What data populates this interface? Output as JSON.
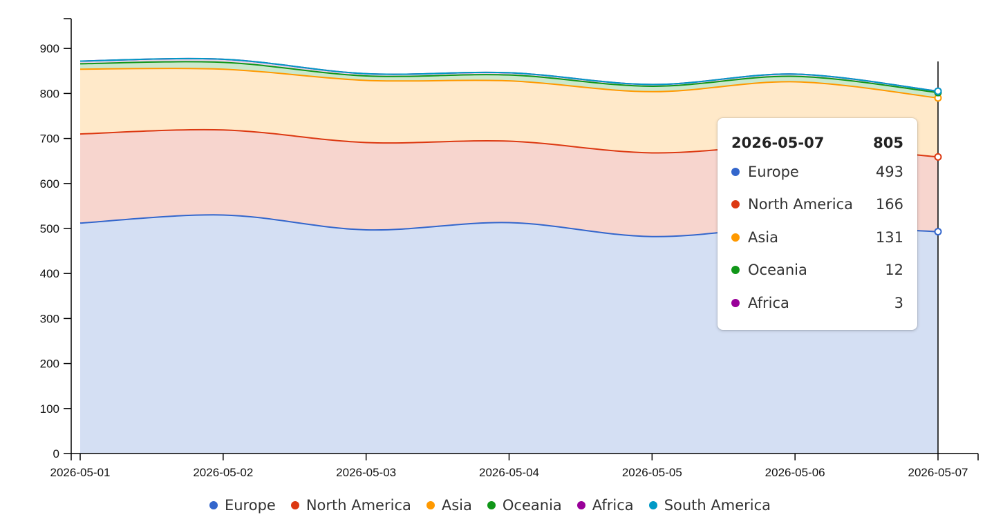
{
  "chart_data": {
    "type": "area",
    "stacked": true,
    "x": [
      "2026-05-01",
      "2026-05-02",
      "2026-05-03",
      "2026-05-04",
      "2026-05-05",
      "2026-05-06",
      "2026-05-07"
    ],
    "series": [
      {
        "name": "Europe",
        "color": "#3366cc",
        "fill": "#d4dff3",
        "values": [
          512,
          530,
          497,
          513,
          482,
          504,
          493
        ]
      },
      {
        "name": "North America",
        "color": "#dc3912",
        "fill": "#f7d5ce",
        "values": [
          198,
          189,
          194,
          181,
          186,
          180,
          166
        ]
      },
      {
        "name": "Asia",
        "color": "#ff9900",
        "fill": "#ffe9c9",
        "values": [
          144,
          135,
          138,
          134,
          136,
          142,
          131
        ]
      },
      {
        "name": "Oceania",
        "color": "#109618",
        "fill": "#cbe8cc",
        "values": [
          12,
          15,
          10,
          13,
          12,
          12,
          12
        ]
      },
      {
        "name": "Africa",
        "color": "#990099",
        "fill": "#ead2ea",
        "values": [
          6,
          7,
          5,
          5,
          4,
          5,
          3
        ]
      },
      {
        "name": "South America",
        "color": "#0099c6",
        "fill": "#cbe9f3",
        "values": [
          0,
          0,
          0,
          0,
          0,
          0,
          0
        ]
      }
    ],
    "yticks": [
      0,
      100,
      200,
      300,
      400,
      500,
      600,
      700,
      800,
      900
    ],
    "ylim": [
      0,
      960
    ],
    "legend_position": "bottom",
    "grid": false,
    "hover_index": 6
  },
  "tooltip": {
    "date": "2026-05-07",
    "total": "805",
    "rows": [
      {
        "name": "Europe",
        "value": "493",
        "color": "#3366cc"
      },
      {
        "name": "North America",
        "value": "166",
        "color": "#dc3912"
      },
      {
        "name": "Asia",
        "value": "131",
        "color": "#ff9900"
      },
      {
        "name": "Oceania",
        "value": "12",
        "color": "#109618"
      },
      {
        "name": "Africa",
        "value": "3",
        "color": "#990099"
      }
    ]
  },
  "legend": [
    {
      "name": "Europe",
      "color": "#3366cc"
    },
    {
      "name": "North America",
      "color": "#dc3912"
    },
    {
      "name": "Asia",
      "color": "#ff9900"
    },
    {
      "name": "Oceania",
      "color": "#109618"
    },
    {
      "name": "Africa",
      "color": "#990099"
    },
    {
      "name": "South America",
      "color": "#0099c6"
    }
  ]
}
